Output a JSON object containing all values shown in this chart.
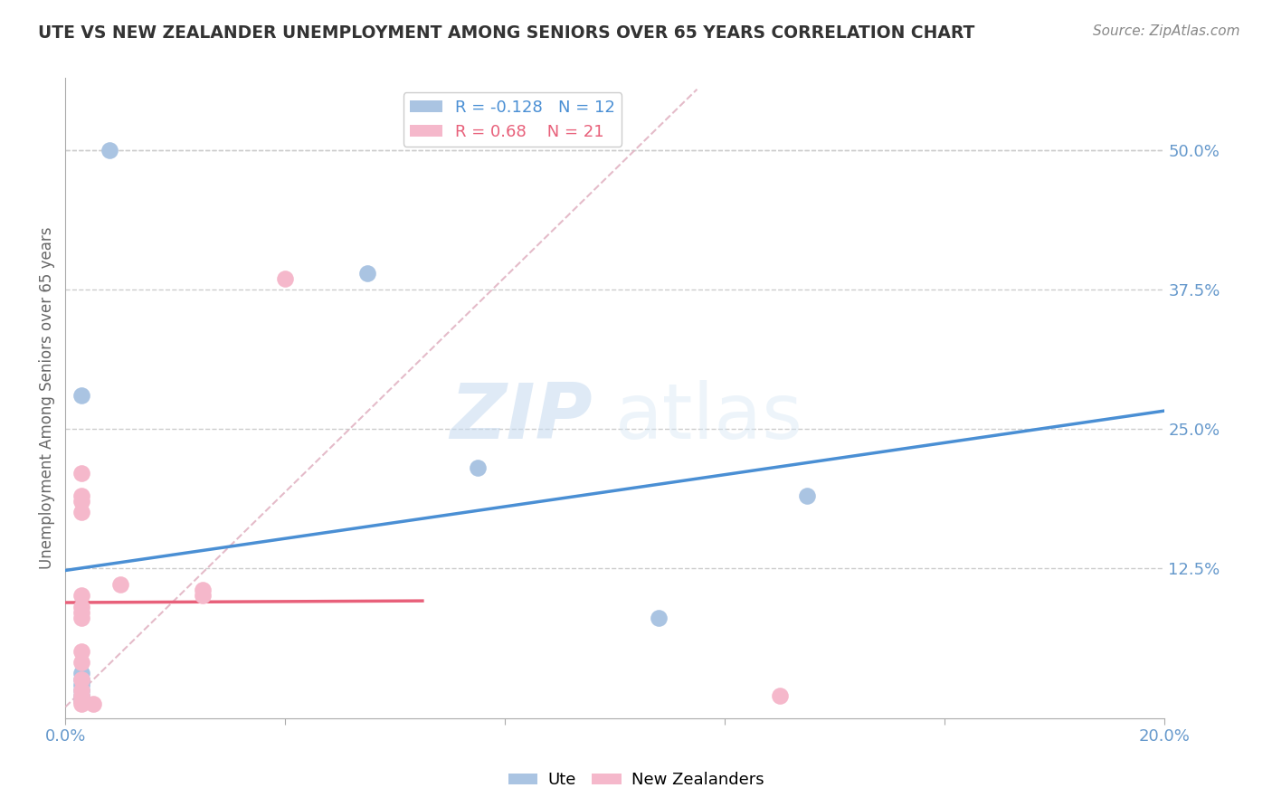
{
  "title": "UTE VS NEW ZEALANDER UNEMPLOYMENT AMONG SENIORS OVER 65 YEARS CORRELATION CHART",
  "source": "Source: ZipAtlas.com",
  "xlabel": "",
  "ylabel": "Unemployment Among Seniors over 65 years",
  "xlim": [
    0.0,
    0.2
  ],
  "ylim": [
    -0.01,
    0.565
  ],
  "xtick_positions": [
    0.0,
    0.04,
    0.08,
    0.12,
    0.16,
    0.2
  ],
  "xtick_labels": [
    "0.0%",
    "",
    "",
    "",
    "",
    "20.0%"
  ],
  "ytick_right_pos": [
    0.0,
    0.125,
    0.25,
    0.375,
    0.5
  ],
  "ytick_right_labels": [
    "",
    "12.5%",
    "25.0%",
    "37.5%",
    "50.0%"
  ],
  "ute_x": [
    0.008,
    0.003,
    0.003,
    0.003,
    0.003,
    0.003,
    0.003,
    0.003,
    0.055,
    0.075,
    0.108,
    0.135
  ],
  "ute_y": [
    0.5,
    0.28,
    0.03,
    0.025,
    0.02,
    0.015,
    0.01,
    0.005,
    0.39,
    0.215,
    0.08,
    0.19
  ],
  "nz_x": [
    0.003,
    0.003,
    0.003,
    0.003,
    0.003,
    0.003,
    0.003,
    0.003,
    0.003,
    0.003,
    0.003,
    0.003,
    0.003,
    0.003,
    0.003,
    0.005,
    0.01,
    0.025,
    0.025,
    0.04,
    0.13
  ],
  "nz_y": [
    0.21,
    0.19,
    0.185,
    0.175,
    0.1,
    0.09,
    0.085,
    0.08,
    0.05,
    0.04,
    0.025,
    0.015,
    0.01,
    0.005,
    0.003,
    0.003,
    0.11,
    0.105,
    0.1,
    0.385,
    0.01
  ],
  "ute_color": "#aac4e2",
  "nz_color": "#f5b8cb",
  "ute_line_color": "#4a8fd4",
  "nz_line_color": "#e8607a",
  "diag_color": "#e0b0c0",
  "R_ute": -0.128,
  "N_ute": 12,
  "R_nz": 0.68,
  "N_nz": 21,
  "watermark_zip": "ZIP",
  "watermark_atlas": "atlas",
  "background_color": "#ffffff",
  "grid_color": "#cccccc",
  "axis_color": "#aaaaaa",
  "label_color": "#6699cc",
  "title_color": "#333333",
  "source_color": "#888888",
  "ylabel_color": "#666666"
}
